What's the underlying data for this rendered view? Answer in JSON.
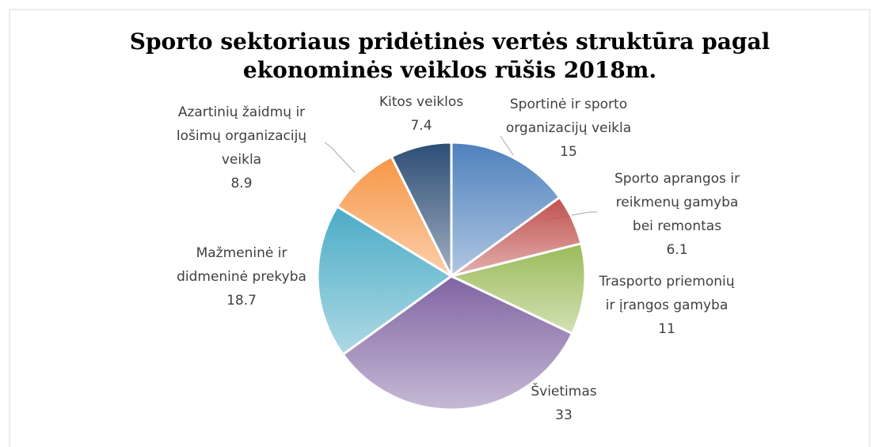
{
  "chart_data": {
    "type": "pie",
    "title": "Sporto sektoriaus pridėtinės vertės struktūra pagal ekonominės veiklos rūšis 2018m.",
    "categories": [
      "Sportinė ir sporto organizacijų veikla",
      "Sporto aprangos ir reikmenų gamyba bei remontas",
      "Trasporto priemonių ir įrangos gamyba",
      "Švietimas",
      "Mažmeninė ir didmeninė prekyba",
      "Azartinių žaidmų ir lošimų organizacijų veikla",
      "Kitos veiklos"
    ],
    "values": [
      15,
      6.1,
      11,
      33,
      18.7,
      8.9,
      7.4
    ],
    "colors": [
      "#4f81bd",
      "#c0504d",
      "#9bbb59",
      "#8064a2",
      "#4bacc6",
      "#f79646",
      "#2c4d75"
    ]
  }
}
